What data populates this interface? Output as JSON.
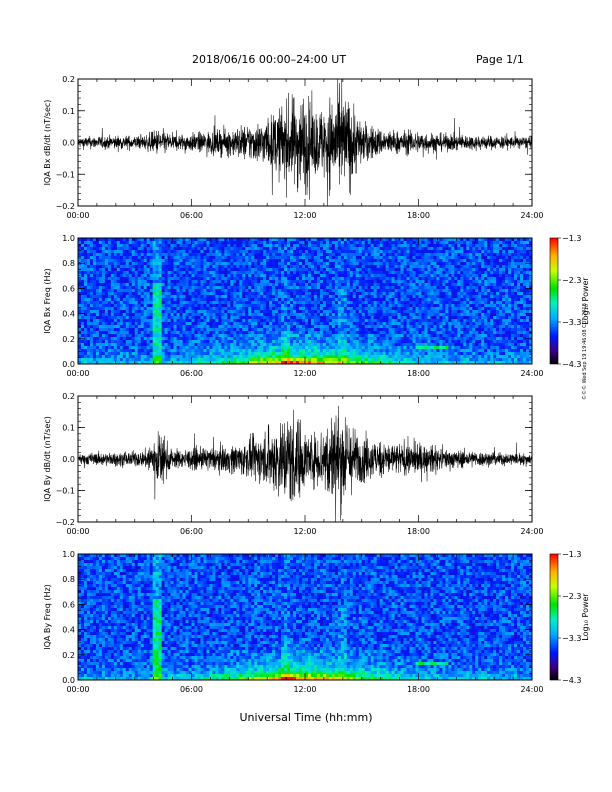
{
  "header": {
    "title": "2018/06/16  00:00–24:00 UT",
    "page": "Page 1/1"
  },
  "footer": {
    "xlabel": "Universal Time (hh:mm)",
    "stamp": "©©© Wed Sep 19 19:46:08 CDT 2018"
  },
  "chart_data": [
    {
      "type": "line",
      "name": "panel-bx-waveform",
      "ylabel": "IQA Bx dB/dt (nT/sec)",
      "ylim": [
        -0.2,
        0.2
      ],
      "yticks": [
        "0.2",
        "0.1",
        "0.0",
        "−0.1",
        "−0.2"
      ],
      "yvals": [
        0.2,
        0.1,
        0.0,
        -0.1,
        -0.2
      ],
      "xticks": [
        "00:00",
        "06:00",
        "12:00",
        "18:00",
        "24:00"
      ],
      "xlim_hours": [
        0,
        24
      ],
      "envelope_hours": [
        0,
        2,
        3.5,
        4,
        4.3,
        5,
        6,
        7,
        8,
        9,
        10,
        10.5,
        11,
        11.5,
        12,
        12.5,
        13,
        13.5,
        14,
        14.5,
        15,
        16,
        17,
        18,
        19,
        20,
        22,
        24
      ],
      "envelope_amp": [
        0.025,
        0.03,
        0.03,
        0.05,
        0.06,
        0.035,
        0.04,
        0.05,
        0.06,
        0.08,
        0.1,
        0.14,
        0.18,
        0.2,
        0.22,
        0.14,
        0.16,
        0.22,
        0.22,
        0.18,
        0.09,
        0.06,
        0.05,
        0.05,
        0.04,
        0.035,
        0.03,
        0.025
      ]
    },
    {
      "type": "heatmap",
      "name": "panel-bx-spectrogram",
      "ylabel": "IQA Bx Freq (Hz)",
      "ylim": [
        0.0,
        1.0
      ],
      "yticks": [
        "1.0",
        "0.8",
        "0.6",
        "0.4",
        "0.2",
        "0.0"
      ],
      "yvals": [
        1.0,
        0.8,
        0.6,
        0.4,
        0.2,
        0.0
      ],
      "xticks": [
        "00:00",
        "06:00",
        "12:00",
        "18:00",
        "24:00"
      ],
      "xlim_hours": [
        0,
        24
      ],
      "colorbar": {
        "label": "Log₁₀ Power",
        "ticks": [
          "−1.3",
          "−2.3",
          "−3.3",
          "−4.3"
        ],
        "values": [
          -1.3,
          -2.3,
          -3.3,
          -4.3
        ],
        "range": [
          -4.3,
          -1.3
        ]
      }
    },
    {
      "type": "line",
      "name": "panel-by-waveform",
      "ylabel": "IQA By dB/dt (nT/sec)",
      "ylim": [
        -0.2,
        0.2
      ],
      "yticks": [
        "0.2",
        "0.1",
        "0.0",
        "−0.1",
        "−0.2"
      ],
      "yvals": [
        0.2,
        0.1,
        0.0,
        -0.1,
        -0.2
      ],
      "xticks": [
        "00:00",
        "06:00",
        "12:00",
        "18:00",
        "24:00"
      ],
      "xlim_hours": [
        0,
        24
      ],
      "envelope_hours": [
        0,
        2,
        3.5,
        4,
        4.3,
        5,
        6,
        7,
        8,
        9,
        10,
        10.5,
        11,
        11.5,
        12,
        12.5,
        13,
        13.5,
        14,
        14.5,
        15,
        16,
        17,
        18,
        19,
        20,
        22,
        24
      ],
      "envelope_amp": [
        0.025,
        0.03,
        0.035,
        0.1,
        0.12,
        0.04,
        0.045,
        0.05,
        0.06,
        0.08,
        0.12,
        0.16,
        0.2,
        0.22,
        0.12,
        0.11,
        0.15,
        0.22,
        0.22,
        0.14,
        0.1,
        0.08,
        0.07,
        0.07,
        0.05,
        0.04,
        0.03,
        0.025
      ]
    },
    {
      "type": "heatmap",
      "name": "panel-by-spectrogram",
      "ylabel": "IQA By Freq (Hz)",
      "ylim": [
        0.0,
        1.0
      ],
      "yticks": [
        "1.0",
        "0.8",
        "0.6",
        "0.4",
        "0.2",
        "0.0"
      ],
      "yvals": [
        1.0,
        0.8,
        0.6,
        0.4,
        0.2,
        0.0
      ],
      "xticks": [
        "00:00",
        "06:00",
        "12:00",
        "18:00",
        "24:00"
      ],
      "xlim_hours": [
        0,
        24
      ],
      "colorbar": {
        "label": "Log₁₀ Power",
        "ticks": [
          "−1.3",
          "−2.3",
          "−3.3",
          "−4.3"
        ],
        "values": [
          -1.3,
          -2.3,
          -3.3,
          -4.3
        ],
        "range": [
          -4.3,
          -1.3
        ]
      }
    }
  ]
}
